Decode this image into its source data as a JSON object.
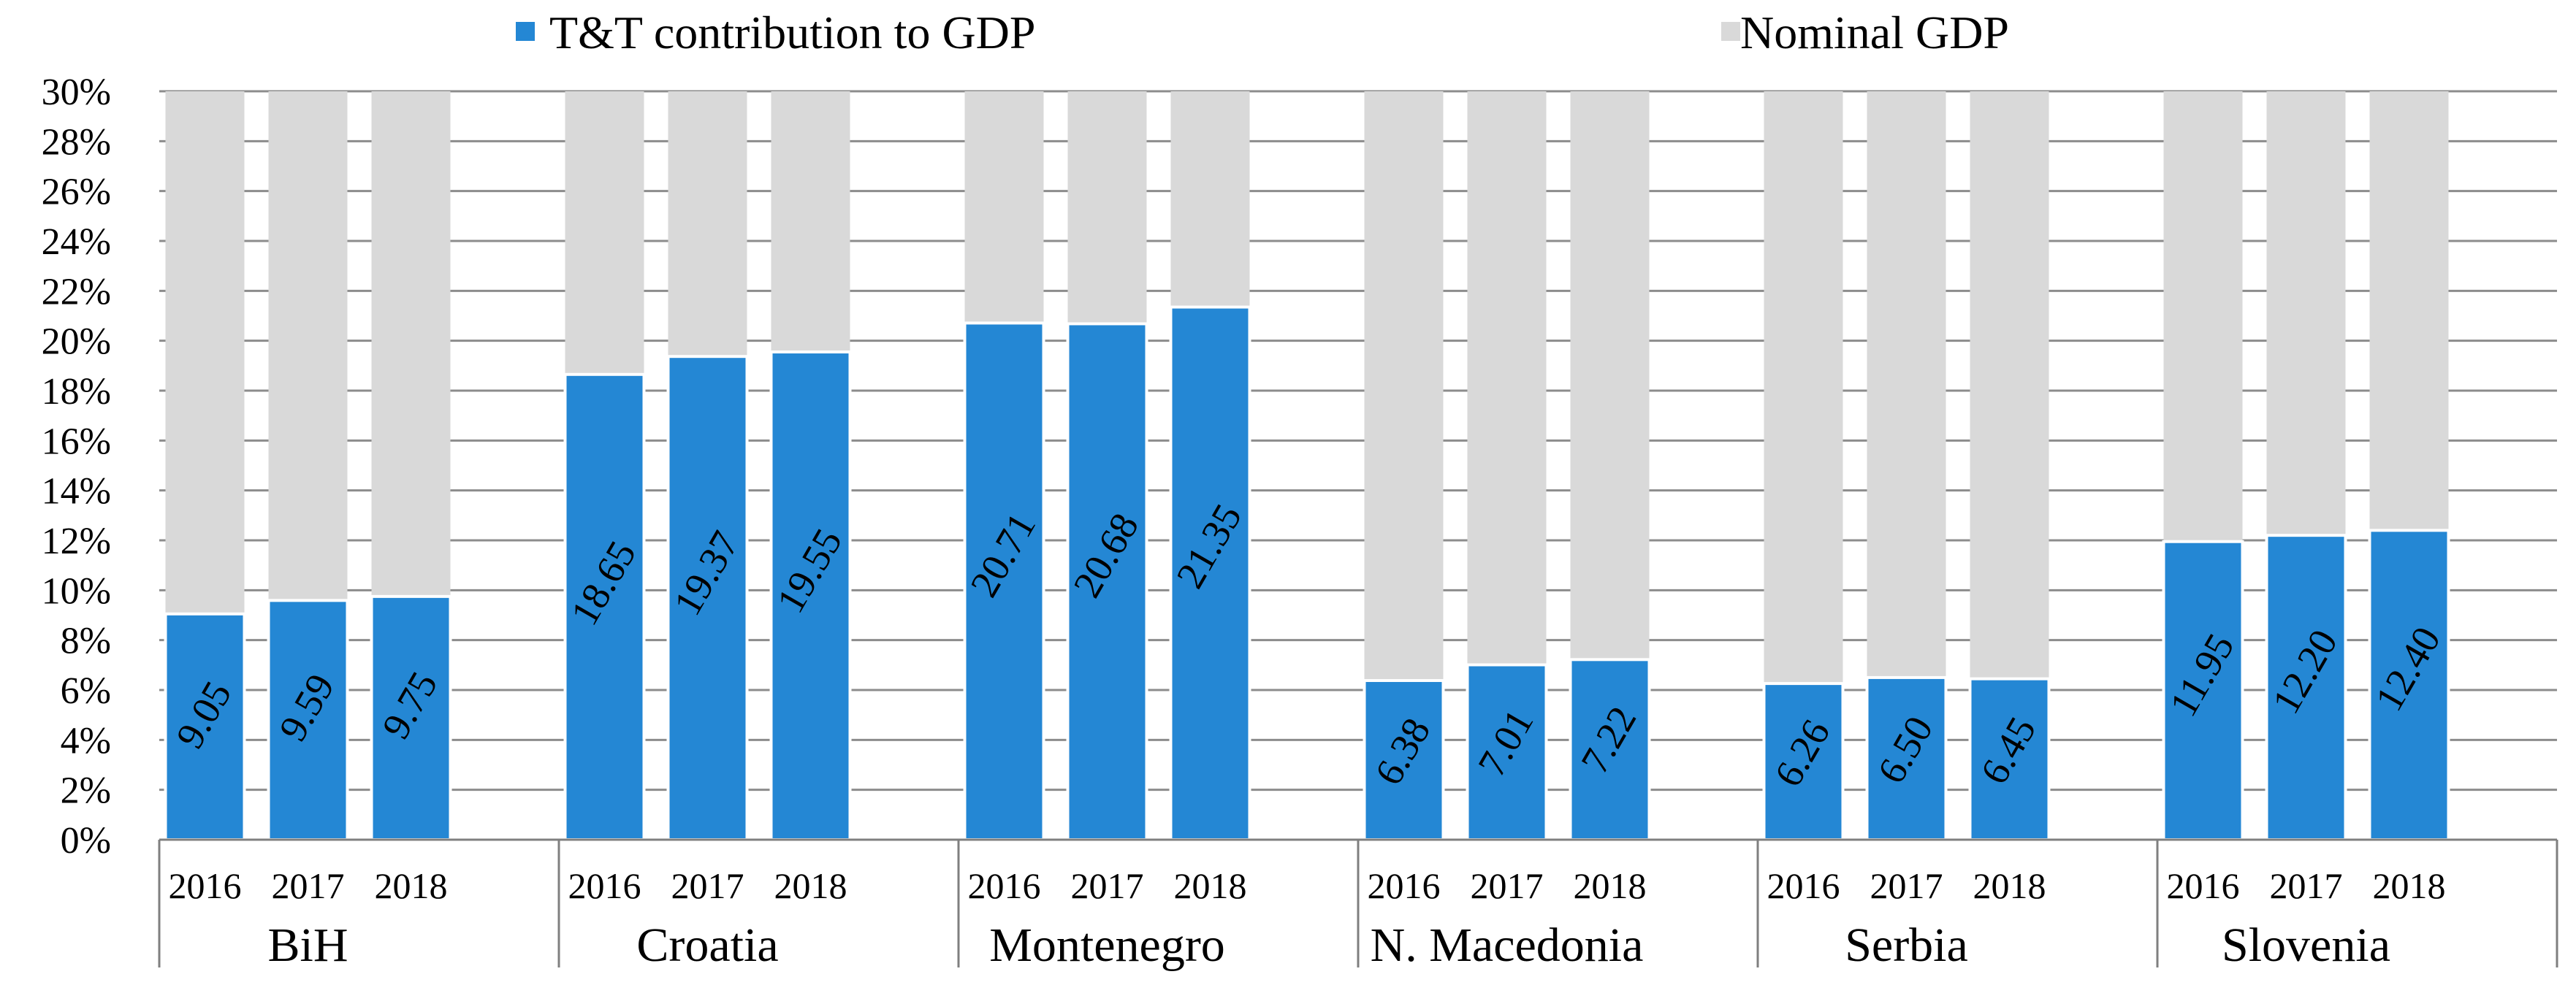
{
  "chart_data": {
    "type": "bar",
    "stacked": true,
    "legend_position": "top",
    "colors": {
      "contribution": "#2487d4",
      "nominal": "#d9d9d9",
      "grid": "#8c8c8c",
      "axis": "#7f7f7f"
    },
    "series": [
      {
        "name": "T&T contribution to GDP",
        "key": "contribution"
      },
      {
        "name": "Nominal GDP",
        "key": "nominal"
      }
    ],
    "ylim": [
      0,
      30
    ],
    "y_ticks": [
      "0%",
      "2%",
      "4%",
      "6%",
      "8%",
      "10%",
      "12%",
      "14%",
      "16%",
      "18%",
      "20%",
      "22%",
      "24%",
      "26%",
      "28%",
      "30%"
    ],
    "years": [
      "2016",
      "2017",
      "2018"
    ],
    "groups": [
      {
        "name": "BiH",
        "values": [
          9.05,
          9.59,
          9.75
        ],
        "labels": [
          "9.05",
          "9.59",
          "9.75"
        ]
      },
      {
        "name": "Croatia",
        "values": [
          18.65,
          19.37,
          19.55
        ],
        "labels": [
          "18.65",
          "19.37",
          "19.55"
        ]
      },
      {
        "name": "Montenegro",
        "values": [
          20.71,
          20.68,
          21.35
        ],
        "labels": [
          "20.71",
          "20.68",
          "21.35"
        ]
      },
      {
        "name": "N. Macedonia",
        "values": [
          6.38,
          7.01,
          7.22
        ],
        "labels": [
          "6.38",
          "7.01",
          "7.22"
        ]
      },
      {
        "name": "Serbia",
        "values": [
          6.26,
          6.5,
          6.45
        ],
        "labels": [
          "6.26",
          "6.50",
          "6.45"
        ]
      },
      {
        "name": "Slovenia",
        "values": [
          11.95,
          12.2,
          12.4
        ],
        "labels": [
          "11.95",
          "12.20",
          "12.40"
        ]
      }
    ]
  }
}
